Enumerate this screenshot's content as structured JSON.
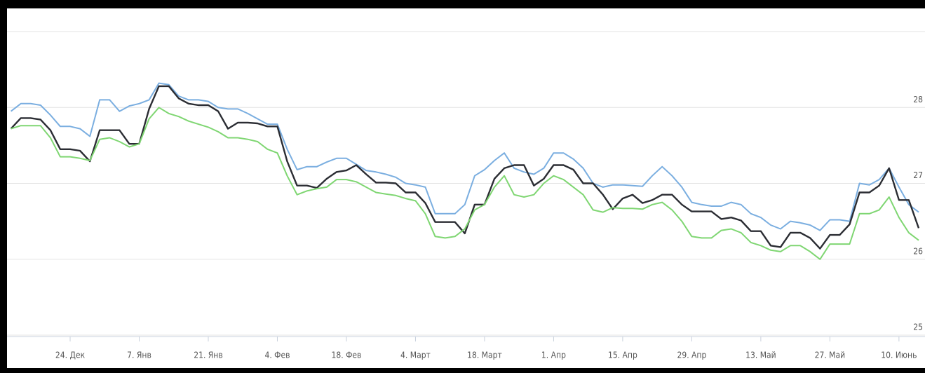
{
  "chart_data": {
    "type": "line",
    "categories": [
      null,
      null,
      null,
      null,
      null,
      null,
      "24. Дек",
      null,
      null,
      null,
      null,
      null,
      null,
      "7. Янв",
      null,
      null,
      null,
      null,
      null,
      null,
      "21. Янв",
      null,
      null,
      null,
      null,
      null,
      null,
      "4. Фев",
      null,
      null,
      null,
      null,
      null,
      null,
      "18. Фев",
      null,
      null,
      null,
      null,
      null,
      null,
      "4. Март",
      null,
      null,
      null,
      null,
      null,
      null,
      "18. Март",
      null,
      null,
      null,
      null,
      null,
      null,
      "1. Апр",
      null,
      null,
      null,
      null,
      null,
      null,
      "15. Апр",
      null,
      null,
      null,
      null,
      null,
      null,
      "29. Апр",
      null,
      null,
      null,
      null,
      null,
      null,
      "13. Май",
      null,
      null,
      null,
      null,
      null,
      null,
      "27. Май",
      null,
      null,
      null,
      null,
      null,
      null,
      "10. Июнь",
      null,
      null
    ],
    "series": [
      {
        "color": "#7aaee0",
        "values": [
          27.95,
          28.05,
          28.05,
          28.03,
          27.9,
          27.75,
          27.75,
          27.72,
          27.62,
          28.1,
          28.1,
          27.95,
          28.02,
          28.05,
          28.1,
          28.32,
          28.3,
          28.15,
          28.1,
          28.1,
          28.08,
          28.0,
          27.98,
          27.98,
          27.92,
          27.85,
          27.78,
          27.78,
          27.45,
          27.18,
          27.22,
          27.22,
          27.28,
          27.33,
          27.33,
          27.25,
          27.17,
          27.15,
          27.12,
          27.08,
          27.0,
          26.98,
          26.95,
          26.6,
          26.6,
          26.6,
          26.72,
          27.1,
          27.18,
          27.3,
          27.4,
          27.2,
          27.15,
          27.12,
          27.2,
          27.4,
          27.4,
          27.32,
          27.2,
          27.0,
          26.95,
          26.98,
          26.98,
          26.97,
          26.96,
          27.1,
          27.22,
          27.1,
          26.95,
          26.75,
          26.72,
          26.7,
          26.7,
          26.75,
          26.72,
          26.6,
          26.55,
          26.45,
          26.4,
          26.5,
          26.48,
          26.45,
          26.38,
          26.52,
          26.52,
          26.5,
          27.0,
          26.98,
          27.05,
          27.2,
          26.95,
          26.72,
          26.62
        ]
      },
      {
        "color": "#2b2d33",
        "values": [
          27.72,
          27.86,
          27.86,
          27.84,
          27.7,
          27.45,
          27.45,
          27.43,
          27.29,
          27.7,
          27.7,
          27.7,
          27.52,
          27.52,
          27.98,
          28.28,
          28.28,
          28.12,
          28.05,
          28.03,
          28.03,
          27.95,
          27.72,
          27.8,
          27.8,
          27.79,
          27.75,
          27.75,
          27.29,
          26.97,
          26.97,
          26.94,
          27.06,
          27.15,
          27.17,
          27.24,
          27.12,
          27.01,
          27.01,
          27.0,
          26.88,
          26.88,
          26.74,
          26.49,
          26.49,
          26.49,
          26.34,
          26.72,
          26.72,
          27.06,
          27.2,
          27.24,
          27.24,
          26.97,
          27.06,
          27.24,
          27.24,
          27.18,
          27.0,
          27.0,
          26.85,
          26.66,
          26.8,
          26.85,
          26.74,
          26.78,
          26.85,
          26.85,
          26.72,
          26.63,
          26.63,
          26.63,
          26.53,
          26.55,
          26.51,
          26.37,
          26.37,
          26.18,
          26.16,
          26.35,
          26.35,
          26.28,
          26.14,
          26.32,
          26.32,
          26.46,
          26.88,
          26.88,
          26.97,
          27.2,
          26.78,
          26.78,
          26.41
        ]
      },
      {
        "color": "#7fd672",
        "values": [
          27.72,
          27.76,
          27.76,
          27.76,
          27.6,
          27.35,
          27.35,
          27.33,
          27.3,
          27.58,
          27.6,
          27.55,
          27.48,
          27.52,
          27.85,
          28.0,
          27.92,
          27.88,
          27.82,
          27.78,
          27.74,
          27.68,
          27.6,
          27.6,
          27.58,
          27.55,
          27.45,
          27.4,
          27.1,
          26.85,
          26.9,
          26.93,
          26.95,
          27.05,
          27.05,
          27.02,
          26.95,
          26.88,
          26.86,
          26.84,
          26.8,
          26.77,
          26.6,
          26.3,
          26.28,
          26.3,
          26.4,
          26.65,
          26.72,
          26.95,
          27.1,
          26.85,
          26.82,
          26.85,
          27.0,
          27.1,
          27.05,
          26.95,
          26.85,
          26.65,
          26.62,
          26.68,
          26.67,
          26.67,
          26.66,
          26.72,
          26.75,
          26.65,
          26.5,
          26.3,
          26.28,
          26.28,
          26.38,
          26.4,
          26.35,
          26.22,
          26.18,
          26.12,
          26.1,
          26.18,
          26.18,
          26.1,
          26.0,
          26.2,
          26.2,
          26.2,
          26.6,
          26.6,
          26.65,
          26.82,
          26.55,
          26.35,
          26.25
        ]
      }
    ],
    "ylim": [
      25,
      29
    ],
    "yticks": [
      25,
      26,
      27,
      28
    ],
    "grid": true
  }
}
